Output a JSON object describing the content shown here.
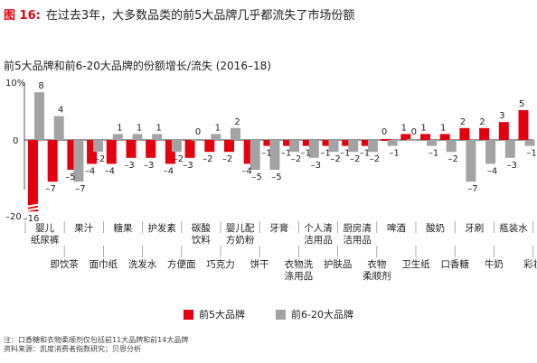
{
  "figure": {
    "label": "图 16:",
    "title": "在过去3年，大多数品类的前5大品牌几乎都流失了市场份额"
  },
  "notes": [
    "注：口香糖和衣物柔顺剂仅包括前11大品牌和前14大品牌",
    "资料来源：凯度消费者指数研究；贝恩分析"
  ],
  "colors": {
    "top5": "#e4000f",
    "top6_20": "#a3a3a3",
    "accent": "#e4000f"
  },
  "chart_data": {
    "type": "bar",
    "title": "前5大品牌和前6-20大品牌的份额增长/流失 (2016–18)",
    "y_tick_labels": [
      "10%",
      "0",
      "–20"
    ],
    "ylim": [
      -20,
      10
    ],
    "categories": [
      "婴儿纸尿裤",
      "即饮茶",
      "果汁",
      "面巾纸",
      "糖果",
      "洗发水",
      "护发素",
      "方便面",
      "碳酸饮料",
      "巧克力",
      "婴儿配方奶粉",
      "饼干",
      "牙膏",
      "衣物洗涤用品",
      "个人清洁用品",
      "护肤品",
      "厨房清洁用品",
      "衣物柔顺剂",
      "啤酒",
      "卫生纸",
      "酸奶",
      "口香糖",
      "牙刷",
      "牛奶",
      "瓶装水",
      "彩妆"
    ],
    "series": [
      {
        "name": "前5大品牌",
        "values": [
          -16,
          -7,
          -5,
          -4,
          -4,
          -3,
          -3,
          -4,
          -3,
          -2,
          -2,
          -4,
          -1,
          -1,
          -1,
          -1,
          -1,
          -1,
          0,
          1,
          1,
          1,
          2,
          2,
          3,
          5
        ]
      },
      {
        "name": "前6-20大品牌",
        "values": [
          8,
          4,
          -7,
          -2,
          1,
          1,
          1,
          -2,
          0,
          1,
          2,
          -5,
          -5,
          -2,
          -3,
          -2,
          -2,
          -2,
          -1,
          0,
          -1,
          -2,
          -7,
          -4,
          -3,
          -1
        ]
      }
    ],
    "data_labels": {
      "前5大品牌": [
        "–16",
        "–7",
        "–5",
        "–4",
        "–4",
        "–3",
        "–3",
        "–4",
        "–3",
        "–2",
        "–2",
        "–4",
        "–1",
        "–1",
        "–1",
        "–1",
        "–1",
        "–1",
        "0",
        "1",
        "1",
        "1",
        "2",
        "2",
        "3",
        "5"
      ],
      "前6-20大品牌": [
        "8",
        "4",
        "–7",
        "–2",
        "1",
        "1",
        "1",
        "–2",
        "0",
        "1",
        "2",
        "–5",
        "–5",
        "–2",
        "–3",
        "–2",
        "–2",
        "–2",
        "–1",
        "0",
        "–1",
        "–2",
        "–7",
        "–4",
        "–3",
        "–1"
      ]
    },
    "category_label_rows": {
      "top": [
        {
          "group": 0,
          "lines": [
            "婴儿",
            "纸尿裤"
          ]
        },
        {
          "group": 1,
          "lines": [
            "果汁"
          ]
        },
        {
          "group": 2,
          "lines": [
            "糖果"
          ]
        },
        {
          "group": 3,
          "lines": [
            "护发素"
          ]
        },
        {
          "group": 4,
          "lines": [
            "碳酸",
            "饮料"
          ]
        },
        {
          "group": 5,
          "lines": [
            "婴儿配",
            "方奶粉"
          ]
        },
        {
          "group": 6,
          "lines": [
            "牙膏"
          ]
        },
        {
          "group": 7,
          "lines": [
            "个人清",
            "洁用品"
          ]
        },
        {
          "group": 8,
          "lines": [
            "厨房清",
            "洁用品"
          ]
        },
        {
          "group": 9,
          "lines": [
            "啤酒"
          ]
        },
        {
          "group": 10,
          "lines": [
            "酸奶"
          ]
        },
        {
          "group": 11,
          "lines": [
            "牙刷"
          ]
        },
        {
          "group": 12,
          "lines": [
            "瓶装水"
          ]
        }
      ],
      "bottom": [
        {
          "group": 0,
          "lines": [
            "即饮茶"
          ]
        },
        {
          "group": 1,
          "lines": [
            "面巾纸"
          ]
        },
        {
          "group": 2,
          "lines": [
            "洗发水"
          ]
        },
        {
          "group": 3,
          "lines": [
            "方便面"
          ]
        },
        {
          "group": 4,
          "lines": [
            "巧克力"
          ]
        },
        {
          "group": 5,
          "lines": [
            "饼干"
          ]
        },
        {
          "group": 6,
          "lines": [
            "衣物洗",
            "涤用品"
          ]
        },
        {
          "group": 7,
          "lines": [
            "护肤品"
          ]
        },
        {
          "group": 8,
          "lines": [
            "衣物",
            "柔顺剂"
          ]
        },
        {
          "group": 9,
          "lines": [
            "卫生纸"
          ]
        },
        {
          "group": 10,
          "lines": [
            "口香糖"
          ]
        },
        {
          "group": 11,
          "lines": [
            "牛奶"
          ]
        },
        {
          "group": 12,
          "lines": [
            "彩妆"
          ]
        }
      ]
    },
    "legend": {
      "position": "bottom-center",
      "items": [
        "前5大品牌",
        "前6-20大品牌"
      ]
    },
    "grid": false
  }
}
